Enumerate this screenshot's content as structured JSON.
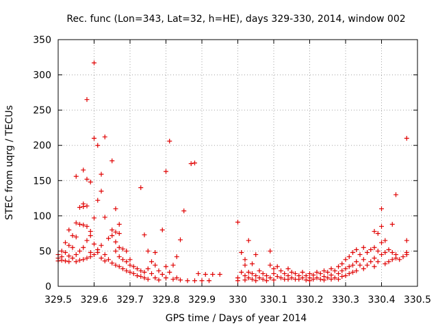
{
  "chart_data": {
    "type": "scatter",
    "title": "Rec. func (Lon=343, Lat=32, h=HE), days 329-330, 2014, window 002",
    "xlabel": "GPS time / Days of year 2014",
    "ylabel": "STEC from uqrg / TECUs",
    "xlim": [
      329.5,
      330.5
    ],
    "ylim": [
      0,
      350
    ],
    "x_ticks": [
      "329.5",
      "329.6",
      "329.7",
      "329.8",
      "329.9",
      "330",
      "330.1",
      "330.2",
      "330.3",
      "330.4",
      "330.5"
    ],
    "y_ticks": [
      "0",
      "50",
      "100",
      "150",
      "200",
      "250",
      "300",
      "350"
    ],
    "grid": true,
    "marker": "plus",
    "marker_color": "#e00000",
    "series": [
      {
        "name": "",
        "points": [
          [
            329.5,
            45
          ],
          [
            329.5,
            40
          ],
          [
            329.5,
            36
          ],
          [
            329.51,
            50
          ],
          [
            329.51,
            42
          ],
          [
            329.51,
            37
          ],
          [
            329.52,
            62
          ],
          [
            329.52,
            48
          ],
          [
            329.52,
            36
          ],
          [
            329.53,
            80
          ],
          [
            329.53,
            58
          ],
          [
            329.53,
            43
          ],
          [
            329.53,
            35
          ],
          [
            329.54,
            72
          ],
          [
            329.54,
            55
          ],
          [
            329.54,
            40
          ],
          [
            329.55,
            156
          ],
          [
            329.55,
            90
          ],
          [
            329.55,
            70
          ],
          [
            329.55,
            45
          ],
          [
            329.55,
            35
          ],
          [
            329.56,
            112
          ],
          [
            329.56,
            88
          ],
          [
            329.56,
            50
          ],
          [
            329.56,
            37
          ],
          [
            329.57,
            165
          ],
          [
            329.57,
            117
          ],
          [
            329.57,
            113
          ],
          [
            329.57,
            87
          ],
          [
            329.57,
            55
          ],
          [
            329.57,
            38
          ],
          [
            329.58,
            265
          ],
          [
            329.58,
            152
          ],
          [
            329.58,
            114
          ],
          [
            329.58,
            85
          ],
          [
            329.58,
            65
          ],
          [
            329.58,
            40
          ],
          [
            329.59,
            148
          ],
          [
            329.59,
            78
          ],
          [
            329.59,
            72
          ],
          [
            329.59,
            48
          ],
          [
            329.59,
            42
          ],
          [
            329.6,
            317
          ],
          [
            329.6,
            210
          ],
          [
            329.6,
            97
          ],
          [
            329.6,
            60
          ],
          [
            329.6,
            45
          ],
          [
            329.61,
            200
          ],
          [
            329.61,
            122
          ],
          [
            329.61,
            52
          ],
          [
            329.61,
            48
          ],
          [
            329.62,
            159
          ],
          [
            329.62,
            135
          ],
          [
            329.62,
            58
          ],
          [
            329.62,
            40
          ],
          [
            329.63,
            212
          ],
          [
            329.63,
            98
          ],
          [
            329.63,
            45
          ],
          [
            329.63,
            36
          ],
          [
            329.64,
            68
          ],
          [
            329.64,
            38
          ],
          [
            329.65,
            178
          ],
          [
            329.65,
            80
          ],
          [
            329.65,
            72
          ],
          [
            329.65,
            33
          ],
          [
            329.66,
            110
          ],
          [
            329.66,
            77
          ],
          [
            329.66,
            63
          ],
          [
            329.66,
            50
          ],
          [
            329.66,
            30
          ],
          [
            329.67,
            88
          ],
          [
            329.67,
            75
          ],
          [
            329.67,
            55
          ],
          [
            329.67,
            42
          ],
          [
            329.67,
            28
          ],
          [
            329.68,
            53
          ],
          [
            329.68,
            38
          ],
          [
            329.68,
            25
          ],
          [
            329.69,
            50
          ],
          [
            329.69,
            35
          ],
          [
            329.69,
            22
          ],
          [
            329.7,
            38
          ],
          [
            329.7,
            30
          ],
          [
            329.7,
            20
          ],
          [
            329.71,
            28
          ],
          [
            329.71,
            18
          ],
          [
            329.72,
            25
          ],
          [
            329.72,
            15
          ],
          [
            329.73,
            140
          ],
          [
            329.73,
            22
          ],
          [
            329.73,
            14
          ],
          [
            329.74,
            73
          ],
          [
            329.74,
            20
          ],
          [
            329.74,
            12
          ],
          [
            329.75,
            50
          ],
          [
            329.75,
            25
          ],
          [
            329.75,
            10
          ],
          [
            329.76,
            35
          ],
          [
            329.76,
            18
          ],
          [
            329.77,
            48
          ],
          [
            329.77,
            30
          ],
          [
            329.77,
            12
          ],
          [
            329.78,
            22
          ],
          [
            329.78,
            9
          ],
          [
            329.79,
            80
          ],
          [
            329.79,
            17
          ],
          [
            329.8,
            163
          ],
          [
            329.8,
            28
          ],
          [
            329.8,
            12
          ],
          [
            329.81,
            206
          ],
          [
            329.81,
            20
          ],
          [
            329.82,
            30
          ],
          [
            329.82,
            10
          ],
          [
            329.83,
            42
          ],
          [
            329.83,
            12
          ],
          [
            329.84,
            66
          ],
          [
            329.84,
            9
          ],
          [
            329.85,
            107
          ],
          [
            329.86,
            8
          ],
          [
            329.87,
            174
          ],
          [
            329.88,
            175
          ],
          [
            329.88,
            8
          ],
          [
            329.89,
            18
          ],
          [
            329.9,
            8
          ],
          [
            329.91,
            17
          ],
          [
            329.92,
            8
          ],
          [
            329.93,
            17
          ],
          [
            329.95,
            17
          ],
          [
            330.0,
            91
          ],
          [
            330.0,
            12
          ],
          [
            330.0,
            8
          ],
          [
            330.01,
            48
          ],
          [
            330.01,
            20
          ],
          [
            330.02,
            38
          ],
          [
            330.02,
            30
          ],
          [
            330.02,
            15
          ],
          [
            330.02,
            9
          ],
          [
            330.03,
            65
          ],
          [
            330.03,
            20
          ],
          [
            330.03,
            12
          ],
          [
            330.04,
            32
          ],
          [
            330.04,
            18
          ],
          [
            330.04,
            10
          ],
          [
            330.05,
            45
          ],
          [
            330.05,
            15
          ],
          [
            330.05,
            8
          ],
          [
            330.06,
            22
          ],
          [
            330.06,
            12
          ],
          [
            330.07,
            18
          ],
          [
            330.07,
            10
          ],
          [
            330.08,
            15
          ],
          [
            330.08,
            8
          ],
          [
            330.09,
            50
          ],
          [
            330.09,
            30
          ],
          [
            330.09,
            12
          ],
          [
            330.1,
            25
          ],
          [
            330.1,
            18
          ],
          [
            330.1,
            9
          ],
          [
            330.11,
            28
          ],
          [
            330.11,
            14
          ],
          [
            330.12,
            22
          ],
          [
            330.12,
            12
          ],
          [
            330.13,
            18
          ],
          [
            330.13,
            10
          ],
          [
            330.14,
            25
          ],
          [
            330.14,
            15
          ],
          [
            330.14,
            10
          ],
          [
            330.15,
            20
          ],
          [
            330.15,
            12
          ],
          [
            330.16,
            18
          ],
          [
            330.16,
            10
          ],
          [
            330.17,
            15
          ],
          [
            330.17,
            10
          ],
          [
            330.18,
            20
          ],
          [
            330.18,
            12
          ],
          [
            330.19,
            15
          ],
          [
            330.19,
            9
          ],
          [
            330.2,
            18
          ],
          [
            330.2,
            12
          ],
          [
            330.2,
            8
          ],
          [
            330.21,
            16
          ],
          [
            330.21,
            10
          ],
          [
            330.22,
            20
          ],
          [
            330.22,
            12
          ],
          [
            330.23,
            18
          ],
          [
            330.23,
            10
          ],
          [
            330.24,
            22
          ],
          [
            330.24,
            14
          ],
          [
            330.24,
            9
          ],
          [
            330.25,
            20
          ],
          [
            330.25,
            12
          ],
          [
            330.26,
            25
          ],
          [
            330.26,
            16
          ],
          [
            330.26,
            10
          ],
          [
            330.27,
            22
          ],
          [
            330.27,
            12
          ],
          [
            330.28,
            28
          ],
          [
            330.28,
            18
          ],
          [
            330.28,
            10
          ],
          [
            330.29,
            32
          ],
          [
            330.29,
            22
          ],
          [
            330.29,
            14
          ],
          [
            330.3,
            38
          ],
          [
            330.3,
            25
          ],
          [
            330.3,
            15
          ],
          [
            330.31,
            42
          ],
          [
            330.31,
            28
          ],
          [
            330.31,
            18
          ],
          [
            330.32,
            48
          ],
          [
            330.32,
            30
          ],
          [
            330.32,
            20
          ],
          [
            330.33,
            52
          ],
          [
            330.33,
            35
          ],
          [
            330.33,
            22
          ],
          [
            330.34,
            45
          ],
          [
            330.34,
            30
          ],
          [
            330.35,
            55
          ],
          [
            330.35,
            38
          ],
          [
            330.35,
            25
          ],
          [
            330.36,
            48
          ],
          [
            330.36,
            30
          ],
          [
            330.37,
            52
          ],
          [
            330.37,
            35
          ],
          [
            330.38,
            78
          ],
          [
            330.38,
            55
          ],
          [
            330.38,
            40
          ],
          [
            330.38,
            28
          ],
          [
            330.39,
            75
          ],
          [
            330.39,
            50
          ],
          [
            330.39,
            35
          ],
          [
            330.4,
            110
          ],
          [
            330.4,
            85
          ],
          [
            330.4,
            62
          ],
          [
            330.4,
            45
          ],
          [
            330.41,
            65
          ],
          [
            330.41,
            48
          ],
          [
            330.41,
            32
          ],
          [
            330.42,
            52
          ],
          [
            330.42,
            35
          ],
          [
            330.43,
            88
          ],
          [
            330.43,
            48
          ],
          [
            330.43,
            38
          ],
          [
            330.44,
            130
          ],
          [
            330.44,
            45
          ],
          [
            330.44,
            40
          ],
          [
            330.45,
            38
          ],
          [
            330.46,
            42
          ],
          [
            330.47,
            210
          ],
          [
            330.47,
            65
          ],
          [
            330.47,
            48
          ],
          [
            330.47,
            45
          ]
        ]
      }
    ]
  }
}
